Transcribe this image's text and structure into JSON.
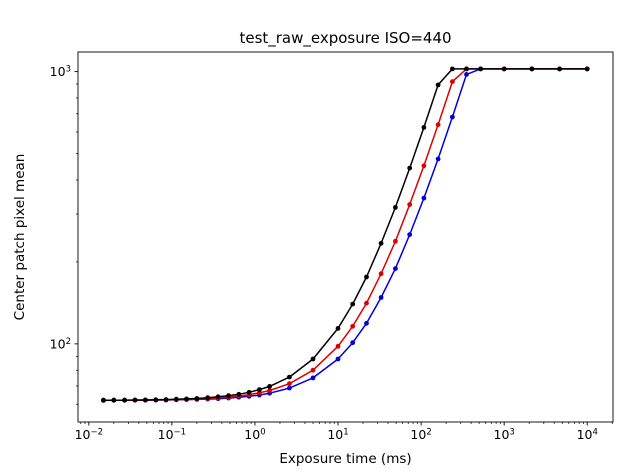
{
  "figure": {
    "title": "test_raw_exposure ISO=440",
    "xlabel": "Exposure time (ms)",
    "ylabel": "Center patch pixel mean",
    "background": "#ffffff"
  },
  "chart_data": {
    "type": "line",
    "title": "test_raw_exposure ISO=440",
    "xlabel": "Exposure time (ms)",
    "ylabel": "Center patch pixel mean",
    "x_scale": "log",
    "y_scale": "log",
    "grid": false,
    "legend": "none",
    "marker": "dot",
    "saturation_value": 1023,
    "x_ticks_exponents": [
      -2,
      -1,
      0,
      1,
      2,
      3,
      4
    ],
    "y_ticks_exponents": [
      2,
      3
    ],
    "x_log_range": [
      -2.13,
      4.31
    ],
    "y_log_range": [
      1.713,
      3.072
    ],
    "x": [
      0.015,
      0.02,
      0.027,
      0.036,
      0.048,
      0.064,
      0.085,
      0.113,
      0.15,
      0.2,
      0.27,
      0.36,
      0.48,
      0.64,
      0.85,
      1.13,
      1.5,
      2.6,
      5,
      10,
      15,
      22,
      33,
      49,
      73,
      108,
      160,
      238,
      352,
      521,
      1000,
      2154,
      4642,
      10000
    ],
    "series": [
      {
        "name": "blue",
        "color": "#0000dd",
        "values": [
          62.0,
          62.1,
          62.1,
          62.1,
          62.1,
          62.2,
          62.2,
          62.3,
          62.4,
          62.5,
          62.7,
          62.9,
          63.2,
          63.7,
          64.2,
          64.9,
          65.9,
          68.8,
          75.0,
          88.0,
          101.0,
          119.0,
          148.0,
          189.0,
          252.0,
          343.0,
          478.0,
          681.0,
          977.0,
          1023,
          1023,
          1023,
          1023,
          1023
        ]
      },
      {
        "name": "red",
        "color": "#dd0000",
        "values": [
          62.1,
          62.1,
          62.1,
          62.1,
          62.2,
          62.2,
          62.3,
          62.4,
          62.5,
          62.7,
          63.0,
          63.3,
          63.7,
          64.3,
          65.1,
          66.1,
          67.4,
          71.4,
          80.0,
          98.0,
          116.0,
          141.0,
          181.0,
          238.0,
          325.0,
          451.0,
          638.0,
          919.0,
          1023,
          1023,
          1023,
          1023,
          1023,
          1023
        ]
      },
      {
        "name": "black",
        "color": "#000000",
        "values": [
          62.1,
          62.1,
          62.1,
          62.2,
          62.2,
          62.3,
          62.4,
          62.6,
          62.8,
          63.0,
          63.4,
          63.9,
          64.5,
          65.3,
          66.4,
          67.9,
          69.8,
          75.5,
          88.0,
          114.0,
          140.0,
          176.0,
          234.0,
          317.0,
          442.0,
          624.0,
          894.0,
          1023,
          1023,
          1023,
          1023,
          1023,
          1023,
          1023
        ]
      }
    ]
  }
}
